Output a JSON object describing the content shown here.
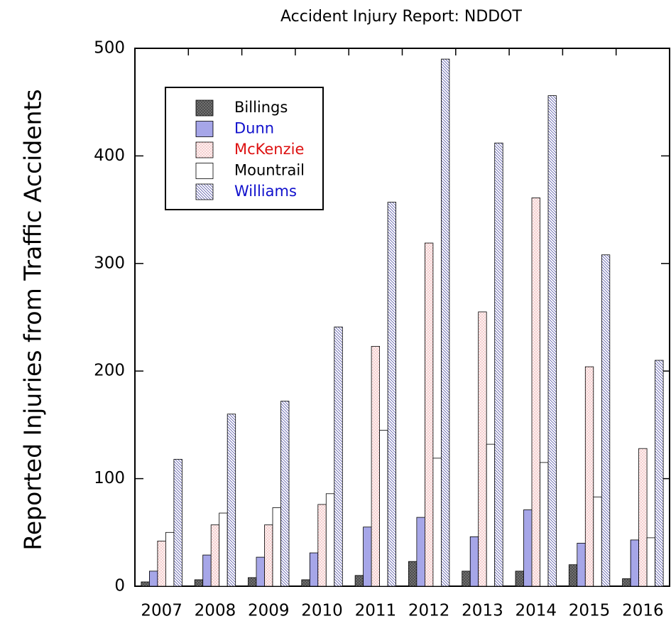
{
  "chart_data": {
    "type": "bar",
    "title": "Accident Injury Report: NDDOT",
    "y_label": "Reported Injuries from Traffic Accidents",
    "categories": [
      "2007",
      "2008",
      "2009",
      "2010",
      "2011",
      "2012",
      "2013",
      "2014",
      "2015",
      "2016"
    ],
    "series": [
      {
        "name": "Billings",
        "color": "#7a7a7a",
        "hatch": "crosshatch",
        "label_color": "#000000",
        "values": [
          4,
          6,
          8,
          6,
          10,
          23,
          14,
          14,
          20,
          7
        ]
      },
      {
        "name": "Dunn",
        "color": "#c8c8f4",
        "hatch": "vertical",
        "label_color": "#1010cc",
        "values": [
          14,
          29,
          27,
          31,
          55,
          64,
          46,
          71,
          40,
          43
        ]
      },
      {
        "name": "McKenzie",
        "color": "#fdf0f0",
        "hatch": "dots",
        "label_color": "#dd1111",
        "values": [
          42,
          57,
          57,
          76,
          223,
          319,
          255,
          361,
          204,
          128
        ]
      },
      {
        "name": "Mountrail",
        "color": "#ffffff",
        "hatch": "none",
        "label_color": "#000000",
        "values": [
          50,
          68,
          73,
          86,
          145,
          119,
          132,
          115,
          83,
          45
        ]
      },
      {
        "name": "Williams",
        "color": "#ffffff",
        "hatch": "diagonal",
        "label_color": "#1010cc",
        "values": [
          118,
          160,
          172,
          241,
          357,
          490,
          412,
          456,
          308,
          210
        ]
      }
    ],
    "ylim": [
      0,
      500
    ],
    "yticks": [
      0,
      100,
      200,
      300,
      400,
      500
    ],
    "legend": "upper left",
    "grid": false
  }
}
